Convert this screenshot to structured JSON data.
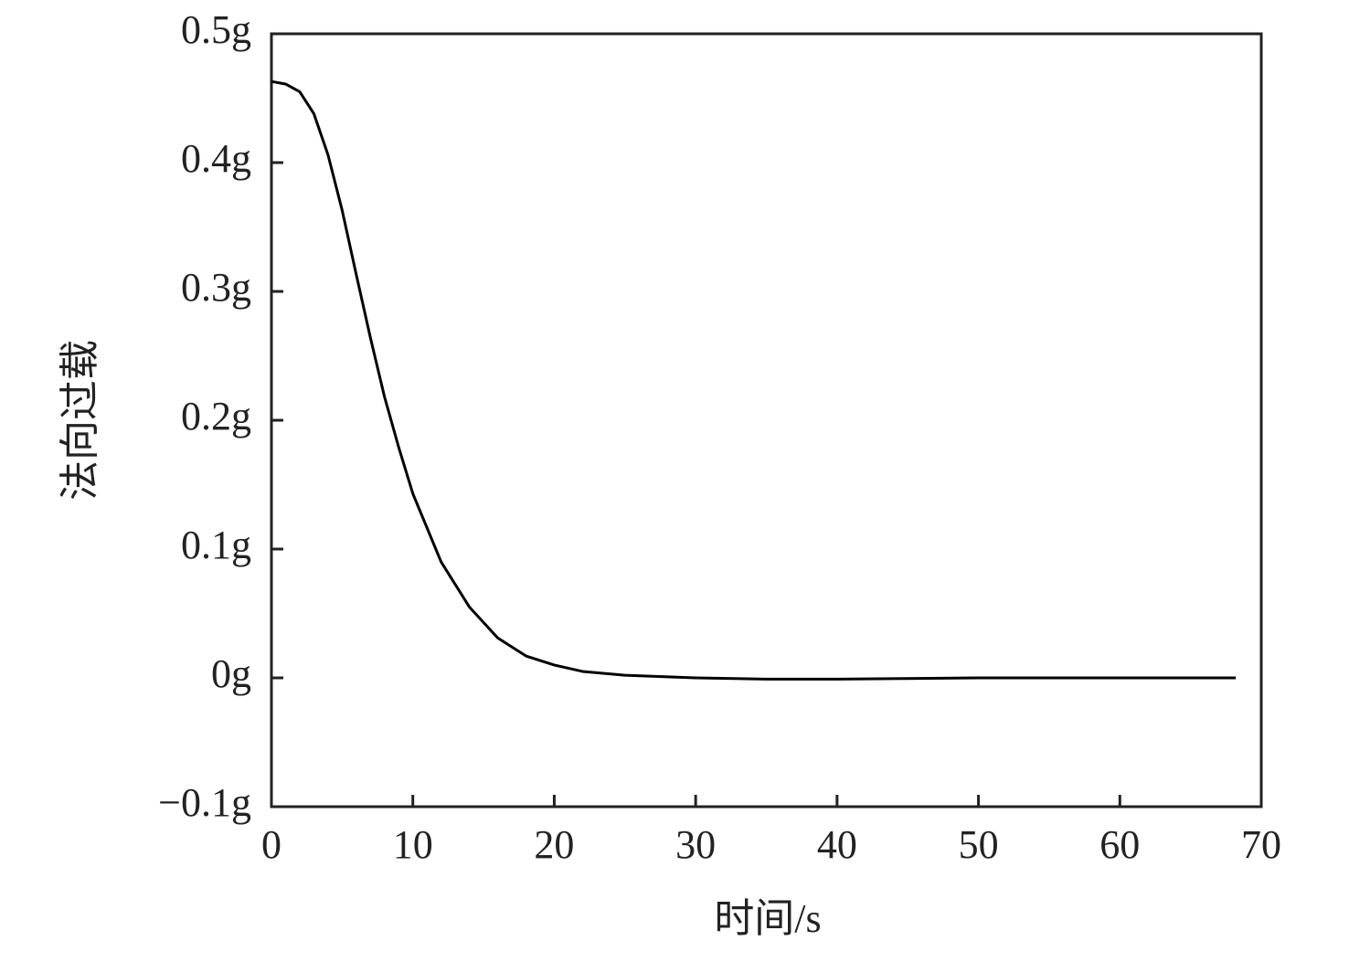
{
  "chart_data": {
    "type": "line",
    "xlabel": "时间/s",
    "ylabel": "法向过载",
    "xlim": [
      0,
      70
    ],
    "xticks": [
      0,
      10,
      20,
      30,
      40,
      50,
      60,
      70
    ],
    "ylim": [
      -0.1,
      0.5
    ],
    "yticks": [
      {
        "value": -0.1,
        "label": "−0.1g"
      },
      {
        "value": 0,
        "label": "0g"
      },
      {
        "value": 0.1,
        "label": "0.1g"
      },
      {
        "value": 0.2,
        "label": "0.2g"
      },
      {
        "value": 0.3,
        "label": "0.3g"
      },
      {
        "value": 0.4,
        "label": "0.4g"
      },
      {
        "value": 0.5,
        "label": "0.5g"
      }
    ],
    "grid": false,
    "x": [
      0,
      1,
      2,
      3,
      4,
      5,
      6,
      7,
      8,
      9,
      10,
      12,
      14,
      16,
      18,
      20,
      22,
      25,
      30,
      35,
      40,
      50,
      60,
      68.2
    ],
    "series": [
      {
        "color": "#000000",
        "values": [
          0.463,
          0.461,
          0.455,
          0.438,
          0.406,
          0.363,
          0.313,
          0.264,
          0.218,
          0.179,
          0.143,
          0.09,
          0.055,
          0.031,
          0.017,
          0.01,
          0.005,
          0.002,
          0.0,
          -0.001,
          -0.001,
          0,
          0,
          0
        ]
      }
    ]
  }
}
